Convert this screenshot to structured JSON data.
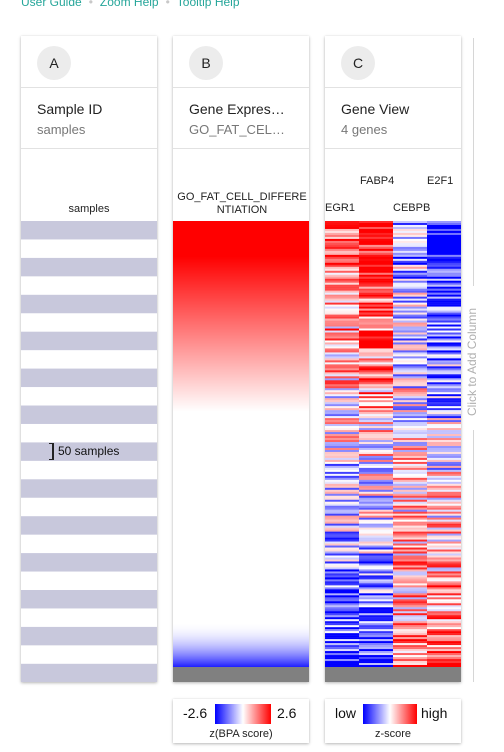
{
  "top_links": [
    "User Guide",
    "Zoom Help",
    "Tooltip Help"
  ],
  "columns": [
    {
      "letter": "A",
      "title": "Sample ID",
      "subtitle": "samples",
      "label": "samples",
      "zoom_label": "50 samples"
    },
    {
      "letter": "B",
      "title": "Gene Expres…",
      "subtitle": "GO_FAT_CEL…",
      "label": "GO_FAT_CELL_DIFFERENTIATION"
    },
    {
      "letter": "C",
      "title": "Gene View",
      "subtitle": "4 genes",
      "genes": [
        "EGR1",
        "FABP4",
        "CEBPB",
        "E2F1"
      ]
    }
  ],
  "add_column_label": "Click to Add Column",
  "legends": [
    {
      "low": "-2.6",
      "high": "2.6",
      "caption": "z(BPA score)"
    },
    {
      "low": "low",
      "high": "high",
      "caption": "z-score"
    }
  ],
  "colors": {
    "accent": "#26a69a",
    "high": "#ff0000",
    "low": "#0000ff",
    "sample_band": "#c8c8dc",
    "no_data": "#808080"
  }
}
